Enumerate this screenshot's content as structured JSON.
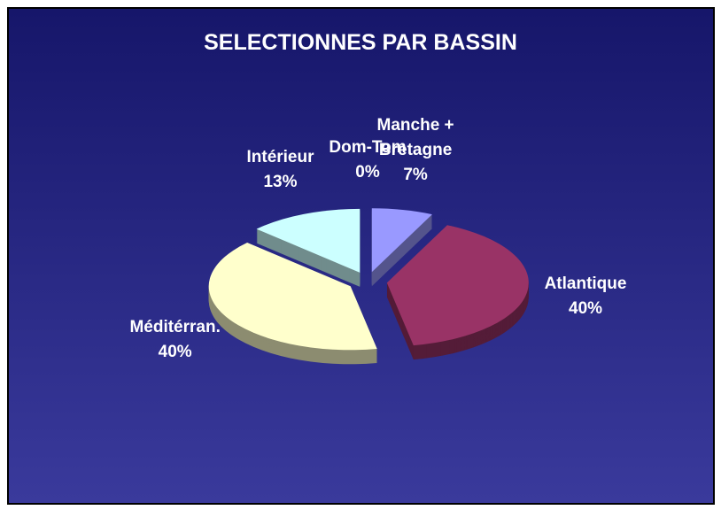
{
  "chart_data": {
    "type": "pie",
    "title": "SELECTIONNES PAR BASSIN",
    "categories": [
      "Manche + Bretagne",
      "Atlantique",
      "Méditérran.",
      "Intérieur",
      "Dom-Tom"
    ],
    "values": [
      7,
      40,
      40,
      13,
      0
    ],
    "value_labels": [
      "7%",
      "40%",
      "40%",
      "13%",
      "0%"
    ],
    "colors": [
      "#9999ff",
      "#993366",
      "#ffffcc",
      "#ccffff",
      "#660066"
    ]
  }
}
